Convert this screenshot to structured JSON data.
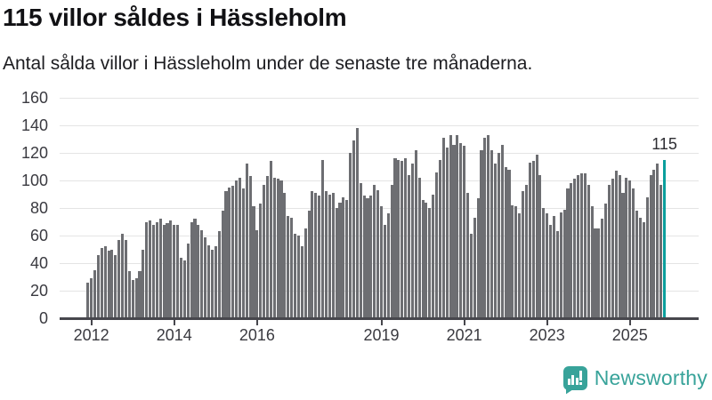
{
  "header": {
    "title": "115 villor såldes i Hässleholm",
    "subtitle": "Antal sålda villor i Hässleholm under de senaste tre månaderna."
  },
  "chart_data": {
    "type": "bar",
    "title": "115 villor såldes i Hässleholm",
    "subtitle": "Antal sålda villor i Hässleholm under de senaste tre månaderna.",
    "frequency": "monthly",
    "x_start_month": "2011-12",
    "values": [
      26,
      29,
      35,
      46,
      51,
      52,
      49,
      50,
      46,
      57,
      61,
      57,
      34,
      28,
      29,
      34,
      50,
      70,
      71,
      68,
      70,
      72,
      68,
      69,
      71,
      68,
      68,
      44,
      42,
      54,
      70,
      72,
      68,
      64,
      59,
      53,
      50,
      52,
      63,
      78,
      92,
      95,
      96,
      100,
      102,
      94,
      112,
      103,
      81,
      64,
      83,
      97,
      103,
      114,
      102,
      101,
      100,
      91,
      74,
      73,
      61,
      60,
      52,
      65,
      78,
      92,
      91,
      89,
      115,
      92,
      90,
      91,
      80,
      84,
      88,
      86,
      120,
      129,
      138,
      98,
      89,
      87,
      89,
      97,
      93,
      81,
      68,
      76,
      97,
      116,
      115,
      114,
      116,
      104,
      112,
      122,
      102,
      86,
      84,
      80,
      90,
      106,
      115,
      131,
      124,
      133,
      126,
      133,
      127,
      125,
      91,
      61,
      73,
      87,
      122,
      131,
      133,
      122,
      112,
      120,
      126,
      110,
      108,
      82,
      81,
      76,
      92,
      97,
      113,
      114,
      119,
      104,
      80,
      76,
      68,
      74,
      63,
      77,
      79,
      94,
      98,
      101,
      104,
      105,
      105,
      97,
      81,
      65,
      65,
      72,
      83,
      97,
      101,
      107,
      104,
      91,
      102,
      100,
      94,
      78,
      73,
      70,
      88,
      104,
      108,
      112,
      97,
      115
    ],
    "ylim": [
      0,
      160
    ],
    "y_ticks": [
      0,
      20,
      40,
      60,
      80,
      100,
      120,
      140,
      160
    ],
    "x_ticks": [
      {
        "label": "2012",
        "month_index": 1
      },
      {
        "label": "2014",
        "month_index": 25
      },
      {
        "label": "2016",
        "month_index": 49
      },
      {
        "label": "2019",
        "month_index": 85
      },
      {
        "label": "2021",
        "month_index": 109
      },
      {
        "label": "2023",
        "month_index": 133
      },
      {
        "label": "2025",
        "month_index": 157
      }
    ],
    "grid": "horizontal",
    "legend": "none",
    "bar_color": "#6d6e72",
    "highlight_color": "#0b9f9d",
    "highlight_index": 167,
    "annotation": {
      "text": "115",
      "value": 115
    }
  },
  "footer": {
    "brand": "Newsworthy",
    "brand_color": "#38a39a",
    "logo_icon": "bar-chart-speech-bubble-icon"
  }
}
